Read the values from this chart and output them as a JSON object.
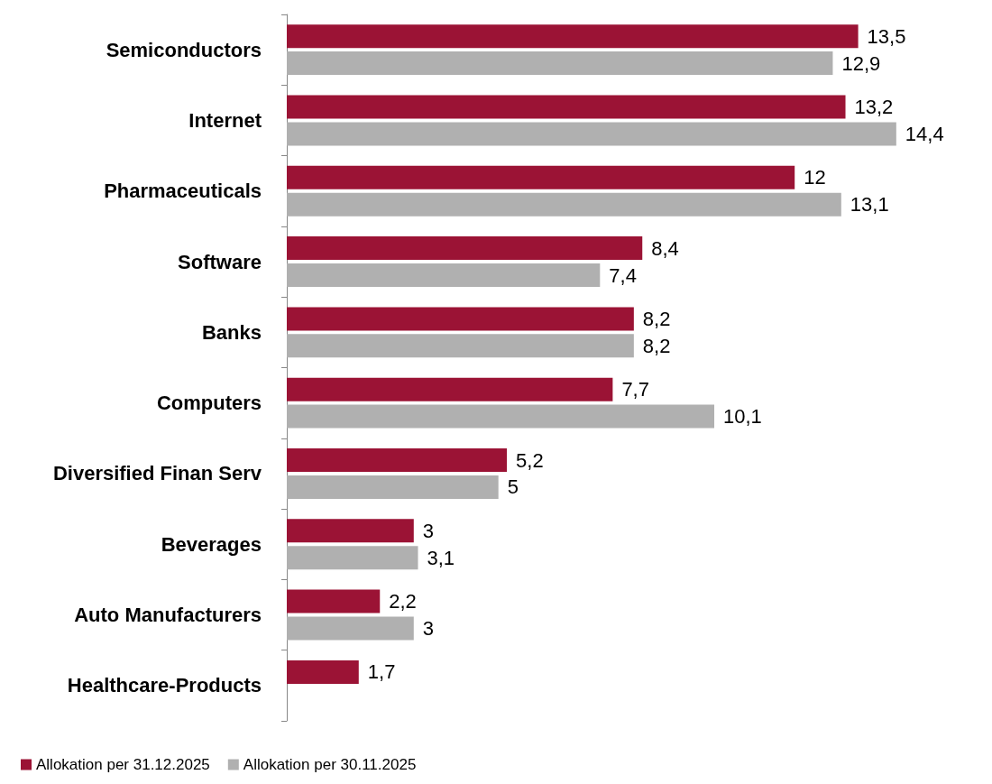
{
  "chart_data": {
    "type": "bar",
    "orientation": "horizontal",
    "categories": [
      "Semiconductors",
      "Internet",
      "Pharmaceuticals",
      "Software",
      "Banks",
      "Computers",
      "Diversified Finan Serv",
      "Beverages",
      "Auto Manufacturers",
      "Healthcare-Products"
    ],
    "series": [
      {
        "name": "Allokation per 31.12.2025",
        "color": "#9b1335",
        "values": [
          13.5,
          13.2,
          12,
          8.4,
          8.2,
          7.7,
          5.2,
          3,
          2.2,
          1.7
        ],
        "value_labels": [
          "13,5",
          "13,2",
          "12",
          "8,4",
          "8,2",
          "7,7",
          "5,2",
          "3",
          "2,2",
          "1,7"
        ]
      },
      {
        "name": "Allokation per 30.11.2025",
        "color": "#b0b0b0",
        "values": [
          12.9,
          14.4,
          13.1,
          7.4,
          8.2,
          10.1,
          5,
          3.1,
          3,
          null
        ],
        "value_labels": [
          "12,9",
          "14,4",
          "13,1",
          "7,4",
          "8,2",
          "10,1",
          "5",
          "3,1",
          "3",
          null
        ]
      }
    ],
    "legend": "bottom left",
    "tick_labels": "y"
  }
}
